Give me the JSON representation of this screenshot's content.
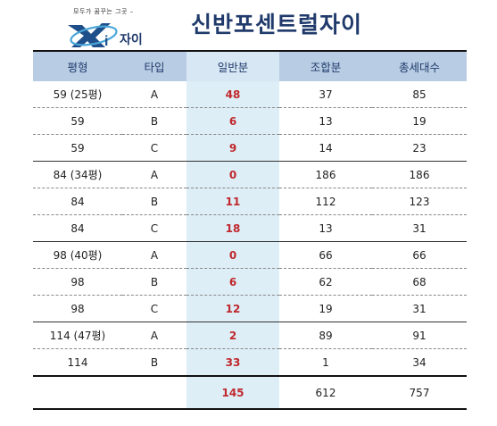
{
  "logo": {
    "tagline": "모두가 꿈꾸는 그곳 –",
    "brand": "자이"
  },
  "title": "신반포센트럴자이",
  "headers": [
    "평형",
    "타입",
    "일반분",
    "조합분",
    "총세대수"
  ],
  "rows": [
    {
      "size": "59 (25평)",
      "type": "A",
      "general": "48",
      "union": "37",
      "total": "85"
    },
    {
      "size": "59",
      "type": "B",
      "general": "6",
      "union": "13",
      "total": "19"
    },
    {
      "size": "59",
      "type": "C",
      "general": "9",
      "union": "14",
      "total": "23"
    },
    {
      "size": "84 (34평)",
      "type": "A",
      "general": "0",
      "union": "186",
      "total": "186"
    },
    {
      "size": "84",
      "type": "B",
      "general": "11",
      "union": "112",
      "total": "123"
    },
    {
      "size": "84",
      "type": "C",
      "general": "18",
      "union": "13",
      "total": "31"
    },
    {
      "size": "98 (40평)",
      "type": "A",
      "general": "0",
      "union": "66",
      "total": "66"
    },
    {
      "size": "98",
      "type": "B",
      "general": "6",
      "union": "62",
      "total": "68"
    },
    {
      "size": "98",
      "type": "C",
      "general": "12",
      "union": "19",
      "total": "31"
    },
    {
      "size": "114 (47평)",
      "type": "A",
      "general": "2",
      "union": "89",
      "total": "91"
    },
    {
      "size": "114",
      "type": "B",
      "general": "33",
      "union": "1",
      "total": "34"
    }
  ],
  "totals": {
    "size": "",
    "type": "",
    "general": "145",
    "union": "612",
    "total": "757"
  }
}
